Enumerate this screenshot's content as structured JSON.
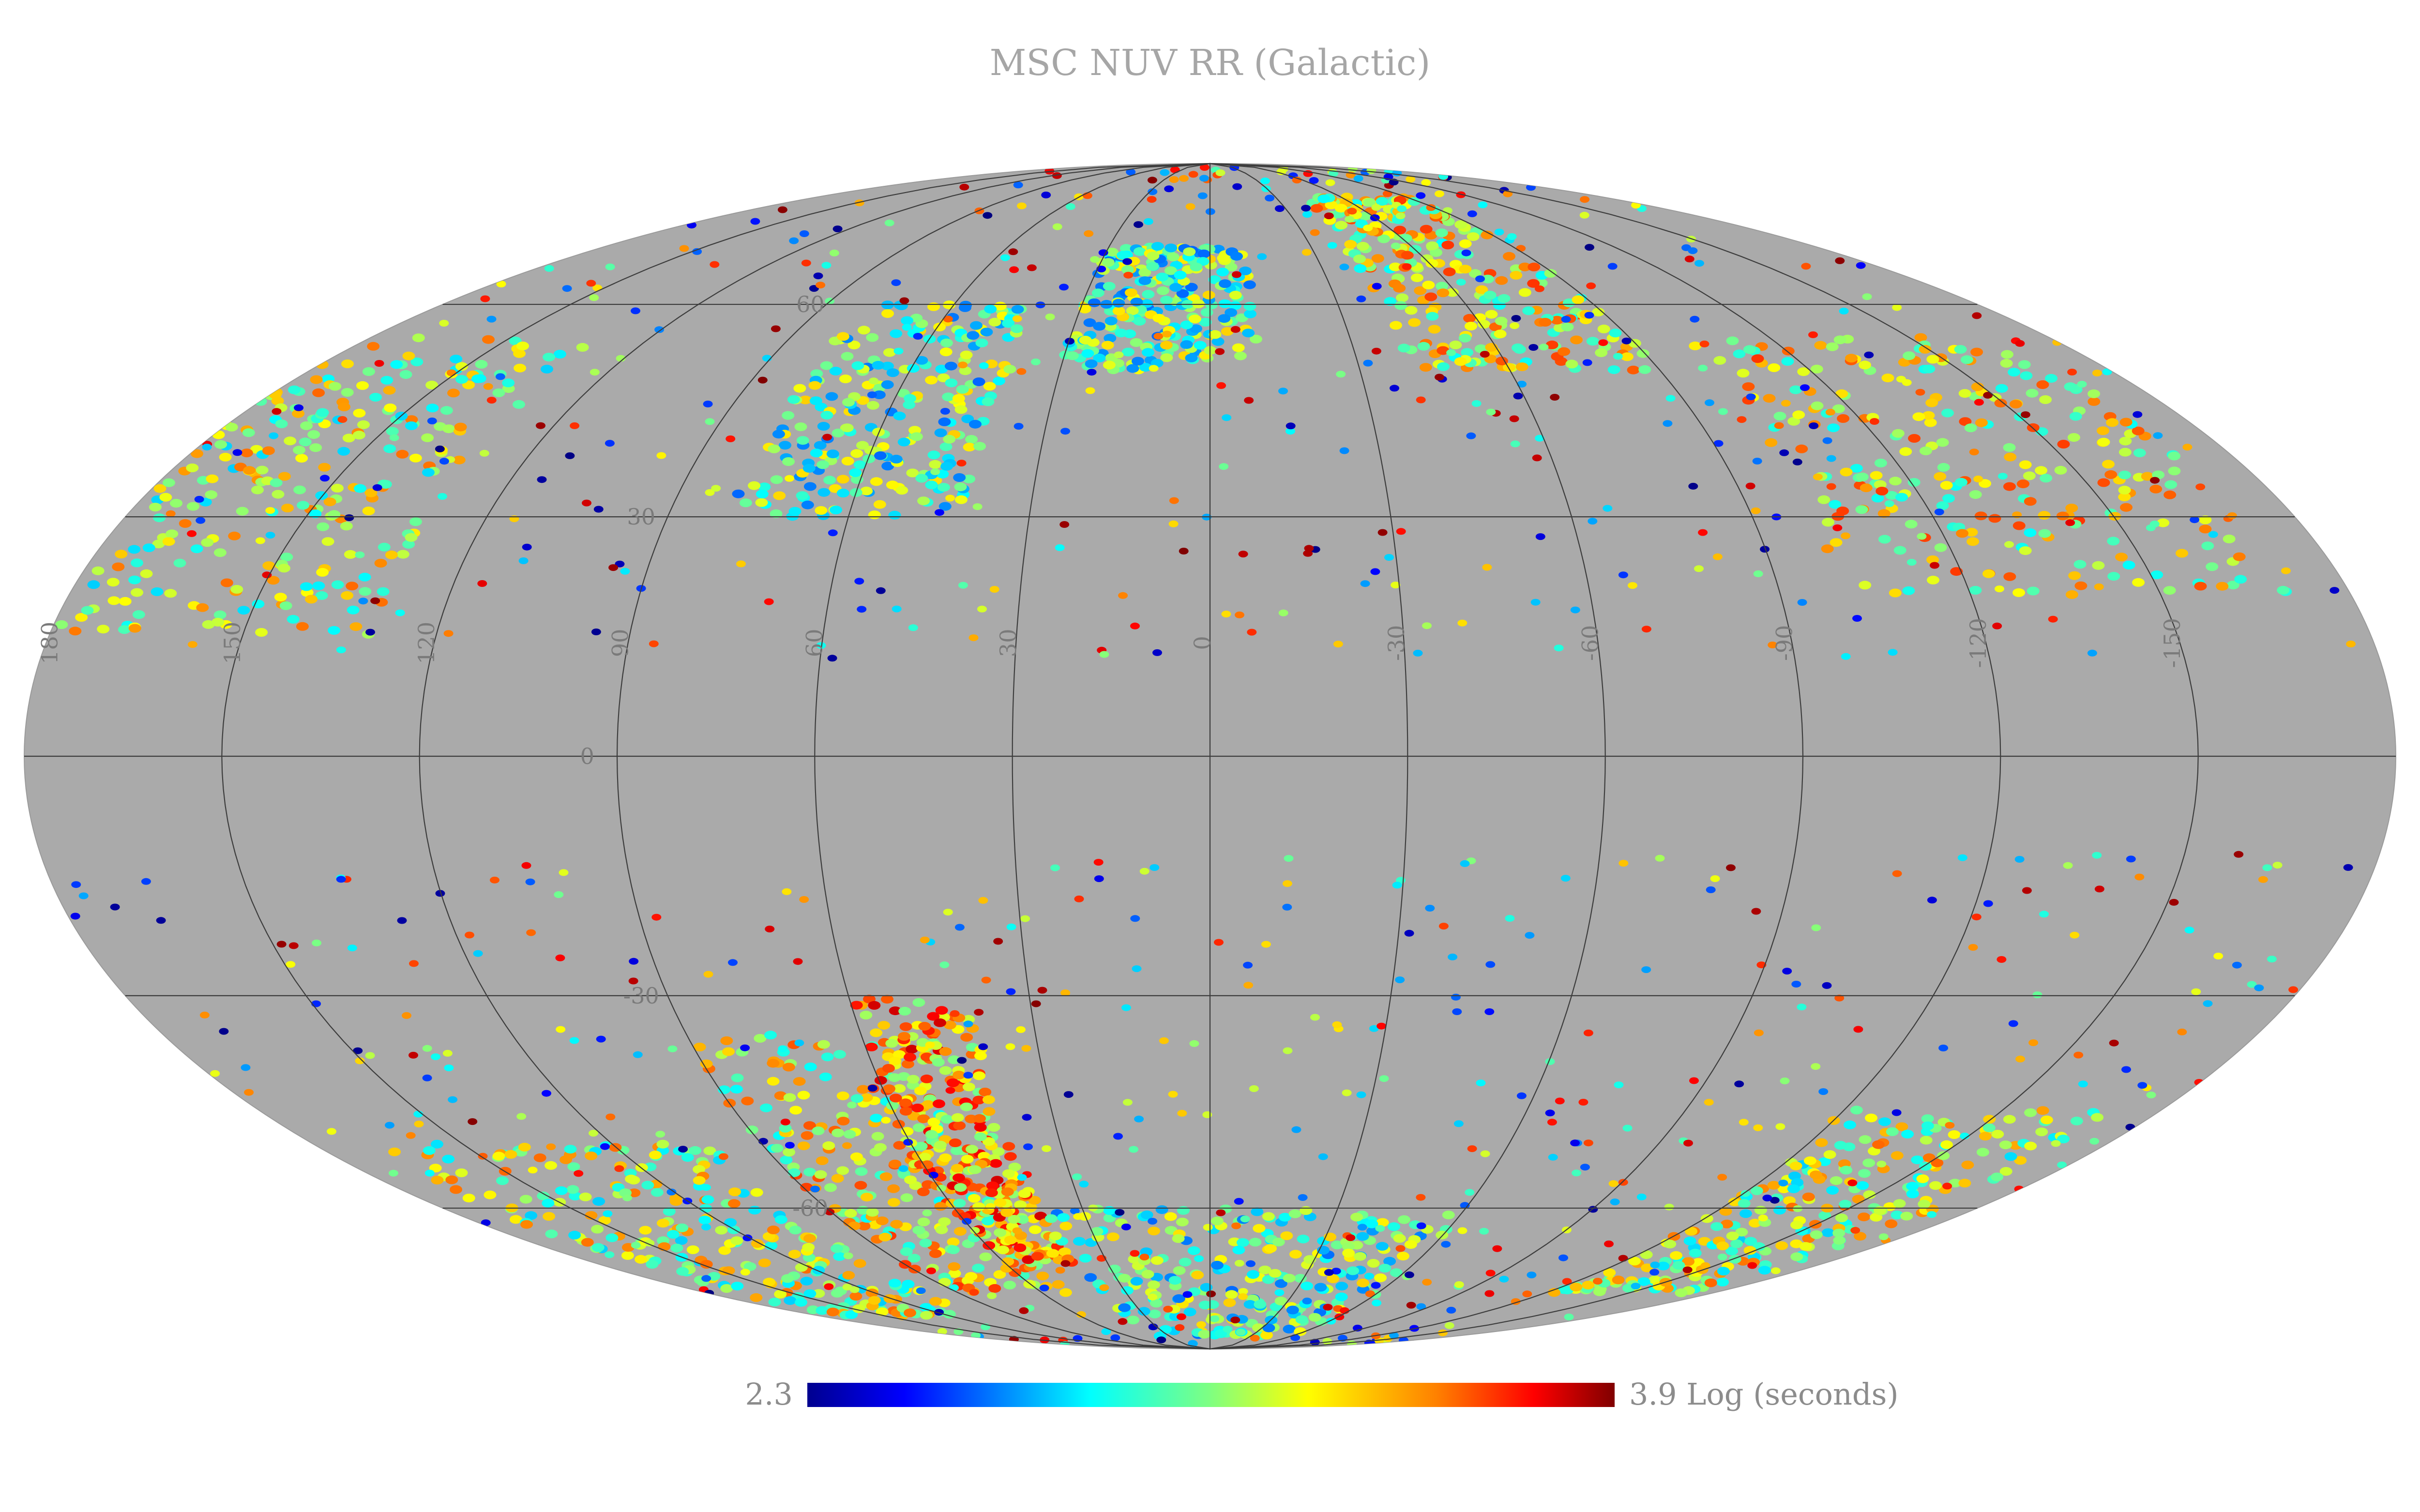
{
  "map": {
    "title": "MSC NUV RR (Galactic)",
    "projection": "mollweide",
    "coordinate_system": "galactic",
    "background_color": "#aaaaaa",
    "graticule_color": "#3c3c3c",
    "longitude_labels": [
      "180",
      "150",
      "120",
      "90",
      "60",
      "30",
      "0",
      "-30",
      "-60",
      "-90",
      "-120",
      "-150"
    ],
    "latitude_labels": [
      "60",
      "30",
      "0",
      "-30",
      "-60"
    ]
  },
  "colorbar": {
    "min_label": "2.3",
    "max_label": "3.9 Log (seconds)",
    "colormap": "jet",
    "colors": [
      "#00008f",
      "#0000ff",
      "#0080ff",
      "#00ffff",
      "#80ff80",
      "#ffff00",
      "#ff8000",
      "#ff0000",
      "#800000"
    ]
  },
  "regions": [
    {
      "region": "north-east-cap",
      "lon": [
        130,
        180
      ],
      "lat": [
        15,
        55
      ],
      "level": 0.55
    },
    {
      "region": "north-west-band",
      "lon": [
        -170,
        -100
      ],
      "lat": [
        20,
        55
      ],
      "level": 0.6
    },
    {
      "region": "north-west-arc",
      "lon": [
        -90,
        -40
      ],
      "lat": [
        50,
        80
      ],
      "level": 0.6
    },
    {
      "region": "north-center-patch",
      "lon": [
        -10,
        30
      ],
      "lat": [
        50,
        70
      ],
      "level": 0.45
    },
    {
      "region": "north-mid-cluster",
      "lon": [
        40,
        80
      ],
      "lat": [
        30,
        60
      ],
      "level": 0.45
    },
    {
      "region": "south-west-band",
      "lon": [
        -170,
        -120
      ],
      "lat": [
        -75,
        -45
      ],
      "level": 0.55
    },
    {
      "region": "south-mid-arc",
      "lon": [
        50,
        90
      ],
      "lat": [
        -75,
        -35
      ],
      "level": 0.6
    },
    {
      "region": "south-east-band",
      "lon": [
        100,
        170
      ],
      "lat": [
        -80,
        -50
      ],
      "level": 0.55
    },
    {
      "region": "south-diagonal-strip",
      "lon": [
        40,
        60
      ],
      "lat": [
        -70,
        -30
      ],
      "level": 0.7
    },
    {
      "region": "south-pole-spread",
      "lon": [
        -60,
        40
      ],
      "lat": [
        -85,
        -60
      ],
      "level": 0.45
    }
  ]
}
